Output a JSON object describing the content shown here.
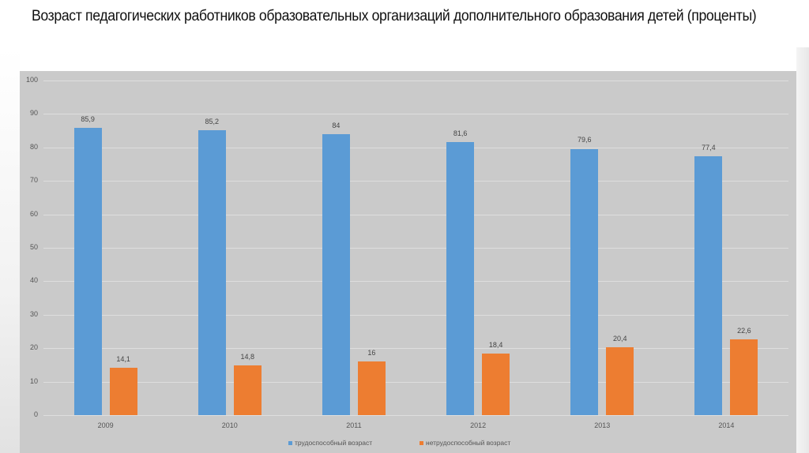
{
  "title": "Возраст педагогических работников образовательных организаций дополнительного образования детей (проценты)",
  "chart_data": {
    "type": "bar",
    "title": "Возраст педагогических работников образовательных организаций дополнительного образования детей (проценты)",
    "xlabel": "",
    "ylabel": "",
    "categories": [
      "2009",
      "2010",
      "2011",
      "2012",
      "2013",
      "2014"
    ],
    "series": [
      {
        "name": "трудоспособный возраст",
        "color": "#5b9bd5",
        "values": [
          85.9,
          85.2,
          84,
          81.6,
          79.6,
          77.4
        ],
        "labels": [
          "85,9",
          "85,2",
          "84",
          "81,6",
          "79,6",
          "77,4"
        ]
      },
      {
        "name": "нетрудоспособный возраст",
        "color": "#ed7d31",
        "values": [
          14.1,
          14.8,
          16,
          18.4,
          20.4,
          22.6
        ],
        "labels": [
          "14,1",
          "14,8",
          "16",
          "18,4",
          "20,4",
          "22,6"
        ]
      }
    ],
    "ylim": [
      0,
      100
    ],
    "yticks": [
      "0",
      "10",
      "20",
      "30",
      "40",
      "50",
      "60",
      "70",
      "80",
      "90",
      "100"
    ],
    "grid": true,
    "legend_position": "bottom"
  },
  "legend": {
    "series1": "трудоспособный возраст",
    "series2": "нетрудоспособный возраст"
  },
  "colors": {
    "series1": "#5b9bd5",
    "series2": "#ed7d31",
    "panel": "#cacaca"
  }
}
